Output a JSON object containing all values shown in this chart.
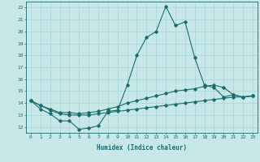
{
  "xlabel": "Humidex (Indice chaleur)",
  "x_values": [
    0,
    1,
    2,
    3,
    4,
    5,
    6,
    7,
    8,
    9,
    10,
    11,
    12,
    13,
    14,
    15,
    16,
    17,
    18,
    19,
    20,
    21,
    22,
    23
  ],
  "line1_y": [
    14.2,
    13.5,
    13.1,
    12.5,
    12.5,
    11.8,
    11.9,
    12.1,
    13.3,
    13.4,
    15.5,
    18.0,
    19.5,
    20.0,
    22.1,
    20.5,
    20.8,
    17.8,
    15.5,
    15.3,
    14.5,
    14.7,
    14.5,
    14.6
  ],
  "line2_y": [
    14.2,
    13.8,
    13.5,
    13.2,
    13.2,
    13.1,
    13.2,
    13.3,
    13.5,
    13.7,
    14.0,
    14.2,
    14.4,
    14.6,
    14.8,
    15.0,
    15.1,
    15.2,
    15.4,
    15.5,
    15.3,
    14.7,
    14.5,
    14.6
  ],
  "line3_y": [
    14.2,
    13.8,
    13.4,
    13.1,
    13.0,
    13.0,
    13.0,
    13.1,
    13.2,
    13.3,
    13.4,
    13.5,
    13.6,
    13.7,
    13.8,
    13.9,
    14.0,
    14.1,
    14.2,
    14.3,
    14.4,
    14.5,
    14.5,
    14.6
  ],
  "line_color": "#1a6b6b",
  "bg_color": "#c8e8e8",
  "grid_color": "#aad4d4",
  "ylim": [
    11.5,
    22.5
  ],
  "yticks": [
    12,
    13,
    14,
    15,
    16,
    17,
    18,
    19,
    20,
    21,
    22
  ],
  "xlim": [
    -0.5,
    23.5
  ],
  "xticks": [
    0,
    1,
    2,
    3,
    4,
    5,
    6,
    7,
    8,
    9,
    10,
    11,
    12,
    13,
    14,
    15,
    16,
    17,
    18,
    19,
    20,
    21,
    22,
    23
  ]
}
